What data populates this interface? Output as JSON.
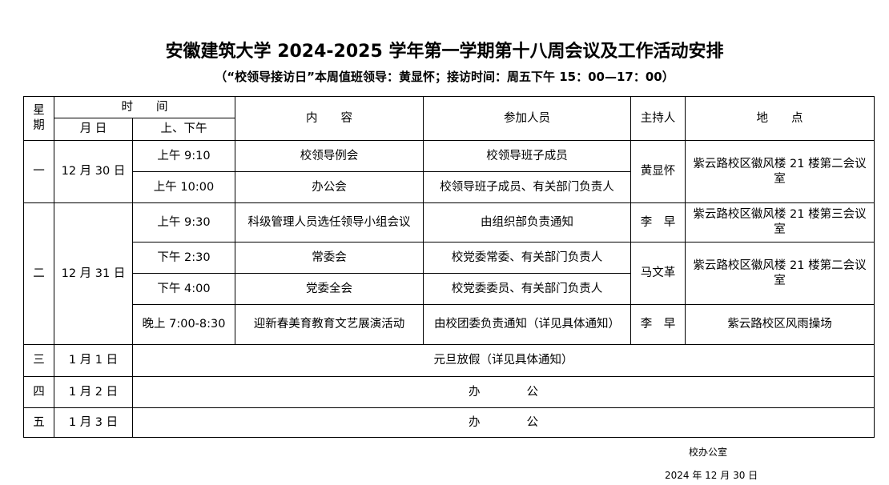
{
  "header": {
    "title": "安徽建筑大学 2024-2025 学年第一学期第十八周会议及工作活动安排",
    "subtitle": "（“校领导接访日”本周值班领导：黄显怀；接访时间：周五下午 15：00—17：00）"
  },
  "table": {
    "head": {
      "weekday": "星期",
      "time": "时　　间",
      "date": "月 日",
      "period": "上、下午",
      "content": "内　　容",
      "attendees": "参加人员",
      "host": "主持人",
      "location": "地　　点"
    },
    "days": [
      {
        "weekday": "一",
        "date": "12 月 30 日",
        "groups": [
          {
            "host": "黄显怀",
            "location": "紫云路校区徽风楼 21 楼第二会议室",
            "sessions": [
              {
                "time": "上午 9:10",
                "content": "校领导例会",
                "attendees": "校领导班子成员"
              },
              {
                "time": "上午 10:00",
                "content": "办公会",
                "attendees": "校领导班子成员、有关部门负责人"
              }
            ]
          }
        ]
      },
      {
        "weekday": "二",
        "date": "12 月 31 日",
        "groups": [
          {
            "host": "李　早",
            "location": "紫云路校区徽风楼 21 楼第三会议室",
            "sessions": [
              {
                "time": "上午 9:30",
                "content": "科级管理人员选任领导小组会议",
                "attendees": "由组织部负责通知"
              }
            ]
          },
          {
            "host": "马文革",
            "location": "紫云路校区徽风楼 21 楼第二会议室",
            "sessions": [
              {
                "time": "下午 2:30",
                "content": "常委会",
                "attendees": "校党委常委、有关部门负责人"
              },
              {
                "time": "下午 4:00",
                "content": "党委全会",
                "attendees": "校党委委员、有关部门负责人"
              }
            ]
          },
          {
            "host": "李　早",
            "location": "紫云路校区风雨操场",
            "sessions": [
              {
                "time": "晚上 7:00-8:30",
                "content": "迎新春美育教育文艺展演活动",
                "attendees": "由校团委负责通知（详见具体通知）"
              }
            ]
          }
        ]
      },
      {
        "weekday": "三",
        "date": "1 月 1 日",
        "note": "元旦放假（详见具体通知）"
      },
      {
        "weekday": "四",
        "date": "1 月 2 日",
        "note": "办　　　　公"
      },
      {
        "weekday": "五",
        "date": "1 月 3 日",
        "note": "办　　　　公"
      }
    ]
  },
  "footer": {
    "office": "校办公室",
    "date": "2024 年 12 月 30 日"
  }
}
